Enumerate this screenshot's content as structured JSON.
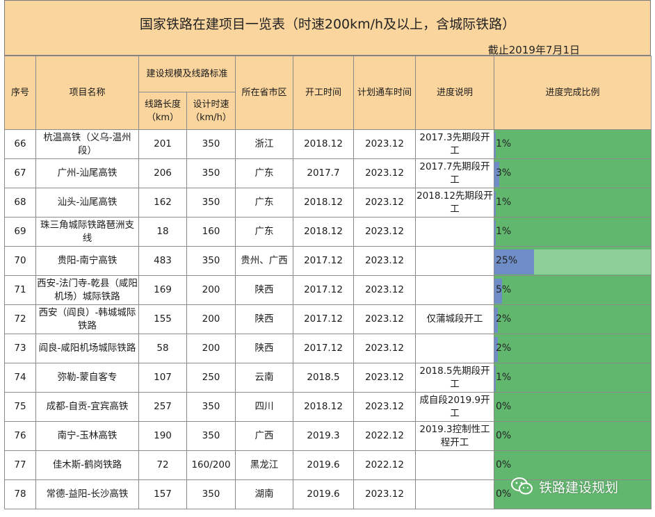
{
  "title": "国家铁路在建项目一览表（时速200km/h及以上，含城际铁路）",
  "as_of": "截止2019年7月1日",
  "headers": {
    "seq": "序号",
    "name": "项目名称",
    "scale_group": "建设规模及线路标准",
    "length": "线路长度（km）",
    "speed": "设计时速（km/h）",
    "province": "所在省市区",
    "start": "开工时间",
    "open": "计划通车时间",
    "progress_note": "进度说明",
    "progress_ratio": "进度完成比例"
  },
  "rows": [
    {
      "seq": "66",
      "name": "杭温高铁（义乌-温州段）",
      "length": "201",
      "speed": "350",
      "province": "浙江",
      "start": "2018.12",
      "open": "2023.12",
      "note": "2017.3先期段开工",
      "pct": 1,
      "pct_label": "1%"
    },
    {
      "seq": "67",
      "name": "广州-汕尾高铁",
      "length": "206",
      "speed": "350",
      "province": "广东",
      "start": "2017.7",
      "open": "2023.12",
      "note": "2017.7先期段开工",
      "pct": 3,
      "pct_label": "3%"
    },
    {
      "seq": "68",
      "name": "汕头-汕尾高铁",
      "length": "162",
      "speed": "350",
      "province": "广东",
      "start": "2018.12",
      "open": "2023.12",
      "note": "2018.12先期段开工",
      "pct": 1,
      "pct_label": "1%"
    },
    {
      "seq": "69",
      "name": "珠三角城际铁路琶洲支线",
      "length": "18",
      "speed": "160",
      "province": "广东",
      "start": "2018.12",
      "open": "2023.12",
      "note": "",
      "pct": 1,
      "pct_label": "1%"
    },
    {
      "seq": "70",
      "name": "贵阳-南宁高铁",
      "length": "483",
      "speed": "350",
      "province": "贵州、广西",
      "start": "2017.12",
      "open": "2023.12",
      "note": "",
      "pct": 25,
      "pct_label": "25%"
    },
    {
      "seq": "71",
      "name": "西安-法门寺-乾县（咸阳机场）城际铁路",
      "length": "169",
      "speed": "200",
      "province": "陕西",
      "start": "2017.12",
      "open": "2023.12",
      "note": "",
      "pct": 5,
      "pct_label": "5%"
    },
    {
      "seq": "72",
      "name": "西安（阎良）-韩城城际铁路",
      "length": "155",
      "speed": "200",
      "province": "陕西",
      "start": "2017.12",
      "open": "2023.12",
      "note": "仅蒲城段开工",
      "pct": 2,
      "pct_label": "2%"
    },
    {
      "seq": "73",
      "name": "阎良-咸阳机场城际铁路",
      "length": "58",
      "speed": "200",
      "province": "陕西",
      "start": "2017.12",
      "open": "2023.12",
      "note": "",
      "pct": 2,
      "pct_label": "2%"
    },
    {
      "seq": "74",
      "name": "弥勒-蒙自客专",
      "length": "107",
      "speed": "250",
      "province": "云南",
      "start": "2018.5",
      "open": "2023.12",
      "note": "2018.5先期段开工",
      "pct": 1,
      "pct_label": "1%"
    },
    {
      "seq": "75",
      "name": "成都-自贡-宜宾高铁",
      "length": "257",
      "speed": "350",
      "province": "四川",
      "start": "2018.12",
      "open": "2023.12",
      "note": "成自段2019.9开工",
      "pct": 0,
      "pct_label": "0%"
    },
    {
      "seq": "76",
      "name": "南宁-玉林高铁",
      "length": "190",
      "speed": "350",
      "province": "广西",
      "start": "2019.3",
      "open": "2022.12",
      "note": "2019.3控制性工程开工",
      "pct": 0,
      "pct_label": "0%"
    },
    {
      "seq": "77",
      "name": "佳木斯-鹤岗铁路",
      "length": "72",
      "speed": "160/200",
      "province": "黑龙江",
      "start": "2019.6",
      "open": "2022.12",
      "note": "",
      "pct": 0,
      "pct_label": "0%"
    },
    {
      "seq": "78",
      "name": "常德-益阳-长沙高铁",
      "length": "157",
      "speed": "350",
      "province": "湖南",
      "start": "2019.6",
      "open": "2023.12",
      "note": "",
      "pct": 0,
      "pct_label": "0%"
    }
  ],
  "colors": {
    "header_bg": "#fbd59e",
    "progress_cell_bg": "#62b76f",
    "progress_bar_fill": "#6e8dc6",
    "progress_bar_track": "#8ccf96"
  },
  "watermark": {
    "icon": "wechat-icon",
    "text": "铁路建设规划"
  }
}
